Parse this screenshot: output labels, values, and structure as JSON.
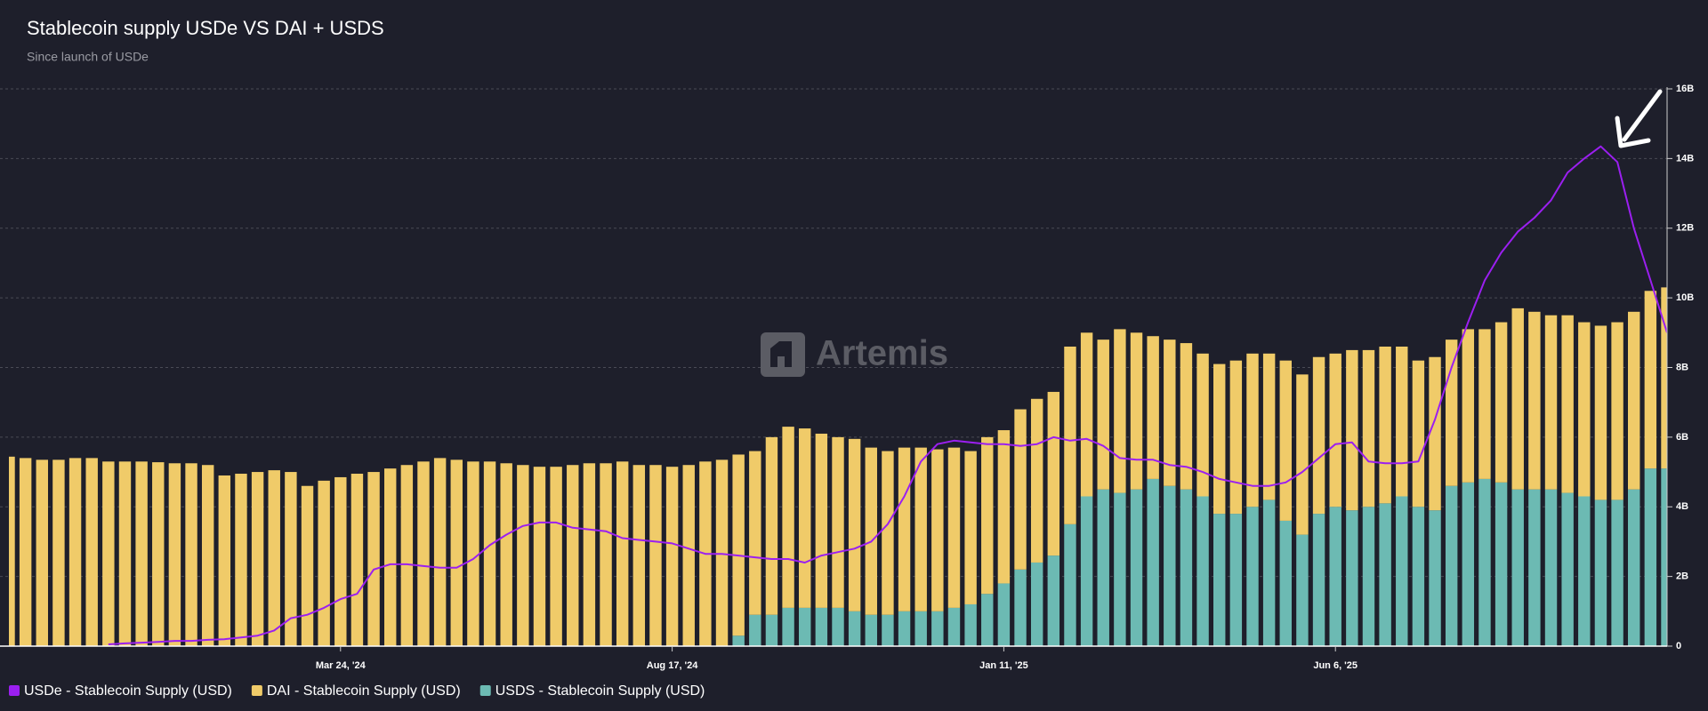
{
  "chart_data": {
    "type": "bar",
    "stacked": true,
    "title": "Stablecoin supply USDe VS DAI + USDS",
    "subtitle": "Since launch of USDe",
    "watermark": "Artemis",
    "categories": [
      null,
      null,
      null,
      null,
      null,
      null,
      null,
      null,
      null,
      null,
      null,
      null,
      null,
      null,
      null,
      null,
      null,
      null,
      null,
      null,
      "Mar 24, '24",
      null,
      null,
      null,
      null,
      null,
      null,
      null,
      null,
      null,
      null,
      null,
      null,
      null,
      null,
      null,
      null,
      null,
      null,
      null,
      "Aug 17, '24",
      null,
      null,
      null,
      null,
      null,
      null,
      null,
      null,
      null,
      null,
      null,
      null,
      null,
      null,
      null,
      null,
      null,
      null,
      null,
      "Jan 11, '25",
      null,
      null,
      null,
      null,
      null,
      null,
      null,
      null,
      null,
      null,
      null,
      null,
      null,
      null,
      null,
      null,
      null,
      null,
      null,
      "Jun 6, '25",
      null,
      null,
      null,
      null,
      null,
      null,
      null,
      null,
      null,
      null,
      null,
      null,
      null,
      null,
      null,
      null,
      null,
      null,
      null,
      null
    ],
    "series": [
      {
        "name": "USDe - Stablecoin Supply (USD)",
        "type": "line",
        "color": "#9b1ff0",
        "values": [
          null,
          null,
          null,
          null,
          null,
          null,
          0.05,
          0.08,
          0.1,
          0.12,
          0.15,
          0.15,
          0.18,
          0.2,
          0.25,
          0.3,
          0.45,
          0.8,
          0.9,
          1.1,
          1.35,
          1.5,
          2.2,
          2.35,
          2.35,
          2.3,
          2.25,
          2.25,
          2.5,
          2.9,
          3.2,
          3.45,
          3.55,
          3.55,
          3.4,
          3.35,
          3.3,
          3.1,
          3.05,
          3.0,
          2.95,
          2.8,
          2.65,
          2.65,
          2.6,
          2.55,
          2.5,
          2.5,
          2.4,
          2.6,
          2.7,
          2.8,
          3.0,
          3.5,
          4.3,
          5.3,
          5.8,
          5.9,
          5.85,
          5.8,
          5.8,
          5.75,
          5.8,
          6.0,
          5.9,
          5.95,
          5.75,
          5.4,
          5.35,
          5.35,
          5.2,
          5.15,
          5.0,
          4.8,
          4.7,
          4.6,
          4.6,
          4.7,
          5.0,
          5.4,
          5.8,
          5.85,
          5.3,
          5.25,
          5.25,
          5.3,
          6.5,
          8.0,
          9.3,
          10.5,
          11.3,
          11.9,
          12.3,
          12.8,
          13.6,
          14.0,
          14.35,
          13.9,
          12.0,
          10.5,
          9.0
        ]
      },
      {
        "name": "DAI - Stablecoin Supply (USD)",
        "type": "bar",
        "color": "#f0cb69",
        "values": [
          5.44,
          5.4,
          5.35,
          5.35,
          5.4,
          5.4,
          5.3,
          5.3,
          5.3,
          5.28,
          5.25,
          5.25,
          5.2,
          4.9,
          4.95,
          5.0,
          5.05,
          5.0,
          4.6,
          4.75,
          4.85,
          4.95,
          5.0,
          5.1,
          5.2,
          5.3,
          5.4,
          5.35,
          5.3,
          5.3,
          5.25,
          5.2,
          5.15,
          5.15,
          5.2,
          5.25,
          5.25,
          5.3,
          5.2,
          5.2,
          5.15,
          5.2,
          5.3,
          5.35,
          5.2,
          4.7,
          5.1,
          5.2,
          5.15,
          5.0,
          4.9,
          4.95,
          4.8,
          4.7,
          4.7,
          4.7,
          4.65,
          4.6,
          4.4,
          4.5,
          4.4,
          4.6,
          4.7,
          4.7,
          5.1,
          4.7,
          4.3,
          4.7,
          4.5,
          4.1,
          4.2,
          4.2,
          4.1,
          4.3,
          4.4,
          4.4,
          4.2,
          4.6,
          4.6,
          4.5,
          4.4,
          4.6,
          4.5,
          4.5,
          4.3,
          4.2,
          4.4,
          4.2,
          4.4,
          4.3,
          4.6,
          5.2,
          5.1,
          5.0,
          5.1,
          5.0,
          5.0,
          5.1,
          5.1,
          5.1,
          5.2
        ]
      },
      {
        "name": "USDS - Stablecoin Supply (USD)",
        "type": "bar",
        "color": "#6cbab3",
        "values": [
          0,
          0,
          0,
          0,
          0,
          0,
          0,
          0,
          0,
          0,
          0,
          0,
          0,
          0,
          0,
          0,
          0,
          0,
          0,
          0,
          0,
          0,
          0,
          0,
          0,
          0,
          0,
          0,
          0,
          0,
          0,
          0,
          0,
          0,
          0,
          0,
          0,
          0,
          0,
          0,
          0,
          0,
          0,
          0,
          0.3,
          0.9,
          0.9,
          1.1,
          1.1,
          1.1,
          1.1,
          1.0,
          0.9,
          0.9,
          1.0,
          1.0,
          1.0,
          1.1,
          1.2,
          1.5,
          1.8,
          2.2,
          2.4,
          2.6,
          3.5,
          4.3,
          4.5,
          4.4,
          4.5,
          4.8,
          4.6,
          4.5,
          4.3,
          3.8,
          3.8,
          4.0,
          4.2,
          3.6,
          3.2,
          3.8,
          4.0,
          3.9,
          4.0,
          4.1,
          4.3,
          4.0,
          3.9,
          4.6,
          4.7,
          4.8,
          4.7,
          4.5,
          4.5,
          4.5,
          4.4,
          4.3,
          4.2,
          4.2,
          4.5,
          5.1,
          5.1
        ]
      }
    ],
    "ylim": [
      0,
      16
    ],
    "yticks": [
      0,
      {
        "value": 2,
        "label": "2B"
      },
      {
        "value": 4,
        "label": "4B"
      },
      {
        "value": 6,
        "label": "6B"
      },
      {
        "value": 8,
        "label": "8B"
      },
      {
        "value": 10,
        "label": "10B"
      },
      {
        "value": 12,
        "label": "12B"
      },
      {
        "value": 14,
        "label": "14B"
      },
      {
        "value": 16,
        "label": "16B"
      }
    ],
    "grid": true
  }
}
